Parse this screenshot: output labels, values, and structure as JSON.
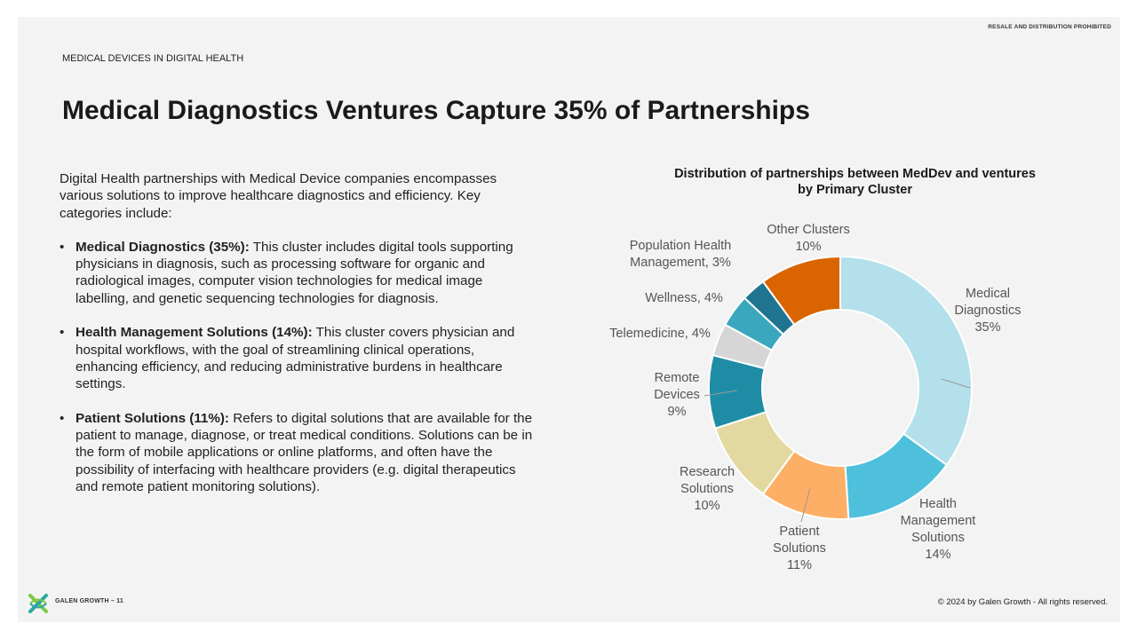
{
  "notice": "RESALE AND DISTRIBUTION PROHIBITED",
  "section_label": "MEDICAL DEVICES IN DIGITAL HEALTH",
  "title": "Medical Diagnostics Ventures Capture 35% of Partnerships",
  "intro": "Digital Health partnerships with Medical Device companies encompasses various solutions to improve healthcare diagnostics and efficiency. Key categories include:",
  "bullets": [
    {
      "term": "Medical Diagnostics (35%):",
      "text": " This cluster includes digital tools supporting physicians in diagnosis, such as processing software for organic and radiological images, computer vision technologies for medical image labelling, and genetic sequencing technologies for diagnosis."
    },
    {
      "term": "Health Management Solutions (14%):",
      "text": " This cluster covers physician and hospital workflows, with the goal of streamlining clinical operations, enhancing efficiency, and reducing administrative burdens in healthcare settings."
    },
    {
      "term": "Patient Solutions (11%):",
      "text": " Refers to digital solutions that are available for the patient to manage, diagnose, or treat medical conditions. Solutions can be in the form of mobile applications or online platforms, and often have the possibility of interfacing with healthcare providers (e.g. digital therapeutics and remote patient monitoring solutions)."
    }
  ],
  "bullet_char": "•",
  "chart_data": {
    "type": "pie",
    "donut": true,
    "title_lines": [
      "Distribution of partnerships between MedDev and ventures",
      "by Primary Cluster"
    ],
    "unit": "%",
    "slices": [
      {
        "name": "Medical Diagnostics",
        "value": 35,
        "color": "#b3e0ea",
        "label_lines": [
          "Medical",
          "Diagnostics",
          "35%"
        ]
      },
      {
        "name": "Health Management Solutions",
        "value": 14,
        "color": "#4fc0db",
        "label_lines": [
          "Health",
          "Management",
          "Solutions",
          "14%"
        ]
      },
      {
        "name": "Patient Solutions",
        "value": 11,
        "color": "#fdaf66",
        "label_lines": [
          "Patient",
          "Solutions",
          "11%"
        ]
      },
      {
        "name": "Research Solutions",
        "value": 10,
        "color": "#e3d9a0",
        "label_lines": [
          "Research",
          "Solutions",
          "10%"
        ]
      },
      {
        "name": "Remote Devices",
        "value": 9,
        "color": "#1f8ca6",
        "label_lines": [
          "Remote",
          "Devices",
          "9%"
        ]
      },
      {
        "name": "Telemedicine",
        "value": 4,
        "color": "#d6d6d6",
        "label_lines": [
          "Telemedicine, 4%"
        ]
      },
      {
        "name": "Wellness",
        "value": 4,
        "color": "#3aa7bf",
        "label_lines": [
          "Wellness, 4%"
        ]
      },
      {
        "name": "Population Health Management",
        "value": 3,
        "color": "#1f7590",
        "label_lines": [
          "Population Health",
          "Management, 3%"
        ]
      },
      {
        "name": "Other Clusters",
        "value": 10,
        "color": "#d96400",
        "label_lines": [
          "Other Clusters",
          "10%"
        ]
      }
    ]
  },
  "footer": {
    "brand": "GALEN GROWTH – 11",
    "copyright": "© 2024 by Galen Growth  - All rights reserved."
  },
  "colors": {
    "background": "#f3f3f3",
    "logo_green": "#7ac943",
    "logo_teal": "#2aa7a0"
  }
}
